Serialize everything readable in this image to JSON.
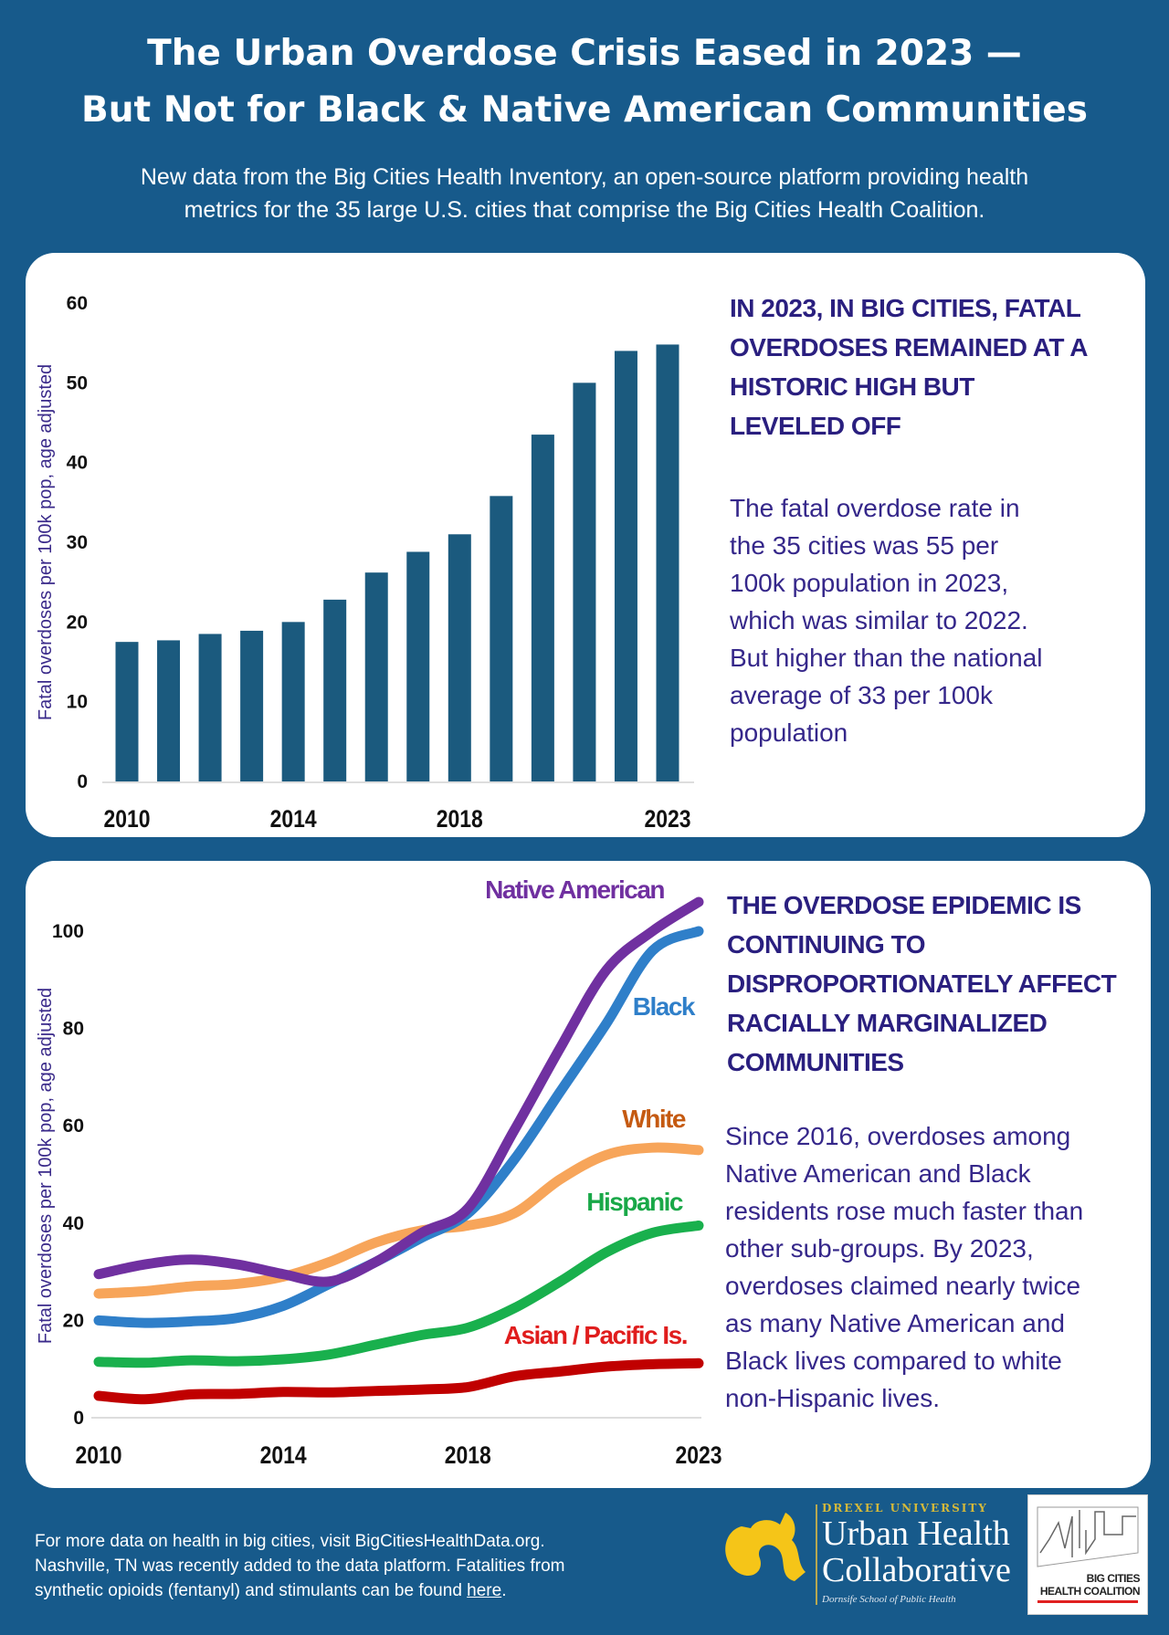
{
  "header": {
    "title_line1": "The Urban Overdose Crisis Eased in 2023 —",
    "title_line2": "But Not for Black & Native American Communities",
    "subtitle_line1": "New data from the Big Cities Health Inventory, an open-source platform providing health",
    "subtitle_line2": "metrics for the 35 large U.S. cities that comprise the Big Cities Health Coalition."
  },
  "panel1": {
    "heading_lines": [
      "IN 2023, IN BIG CITIES, FATAL",
      "OVERDOSES REMAINED AT A",
      "HISTORIC HIGH BUT",
      "LEVELED OFF"
    ],
    "body_lines": [
      "The fatal overdose rate in",
      "the 35 cities was 55 per",
      "100k population in 2023,",
      "which was similar to 2022.",
      "But higher than the national",
      "average of 33 per 100k",
      "population"
    ]
  },
  "panel2": {
    "heading_lines": [
      "THE OVERDOSE EPIDEMIC IS",
      "CONTINUING TO",
      "DISPROPORTIONATELY AFFECT",
      "RACIALLY MARGINALIZED",
      "COMMUNITIES"
    ],
    "body_lines": [
      "Since 2016, overdoses among",
      "Native American and Black",
      "residents rose much faster than",
      "other sub-groups. By 2023,",
      "overdoses claimed nearly twice",
      "as many Native American and",
      "Black lives compared to white",
      "non-Hispanic lives."
    ]
  },
  "chart_data": [
    {
      "type": "bar",
      "ylabel": "Fatal overdoses per 100k pop, age adjusted",
      "xlabel": "",
      "x": [
        2010,
        2011,
        2012,
        2013,
        2014,
        2015,
        2016,
        2017,
        2018,
        2019,
        2020,
        2021,
        2022,
        2023
      ],
      "values": [
        17.5,
        17.7,
        18.5,
        18.9,
        20.0,
        22.8,
        26.2,
        28.8,
        31.0,
        35.8,
        43.5,
        50.0,
        54.0,
        54.8
      ],
      "xticks": [
        "2010",
        "2014",
        "2018",
        "2023"
      ],
      "yticks": [
        "0",
        "10",
        "20",
        "30",
        "40",
        "50",
        "60"
      ],
      "ylim": [
        0,
        60
      ],
      "grid": false,
      "color": "#1b5a7e"
    },
    {
      "type": "line",
      "ylabel": "Fatal overdoses per 100k pop, age adjusted",
      "xlabel": "",
      "x": [
        2010,
        2011,
        2012,
        2013,
        2014,
        2015,
        2016,
        2017,
        2018,
        2019,
        2020,
        2021,
        2022,
        2023
      ],
      "xticks": [
        "2010",
        "2014",
        "2018",
        "2023"
      ],
      "yticks": [
        "0",
        "20",
        "40",
        "60",
        "80",
        "100"
      ],
      "ylim": [
        0,
        105
      ],
      "grid": false,
      "legend": "direct labels at line ends",
      "series": [
        {
          "name": "Native American",
          "color": "#7030a0",
          "label_color": "#7030a0",
          "values": [
            29.5,
            31.5,
            32.5,
            31.5,
            29.5,
            28,
            32,
            38,
            43,
            59,
            76,
            92,
            100,
            106
          ]
        },
        {
          "name": "Black",
          "color": "#2f7fc9",
          "label_color": "#2f7fc9",
          "values": [
            20,
            19.5,
            19.8,
            20.5,
            23,
            27.5,
            32,
            37,
            42,
            53,
            67,
            81,
            96,
            100
          ]
        },
        {
          "name": "White",
          "color": "#f7a55a",
          "label_color": "#c55a11",
          "values": [
            25.5,
            26,
            27,
            27.5,
            29,
            32,
            36,
            38.5,
            39.5,
            42,
            49,
            54,
            55.5,
            55
          ]
        },
        {
          "name": "Hispanic",
          "color": "#19b04d",
          "label_color": "#19a848",
          "values": [
            11.5,
            11.3,
            11.8,
            11.6,
            12,
            13,
            15,
            17,
            18.5,
            22.5,
            28,
            34,
            38,
            39.5
          ]
        },
        {
          "name": "Asian / Pacific Is.",
          "color": "#c00000",
          "label_color": "#e01d1d",
          "values": [
            4.5,
            3.8,
            4.8,
            4.9,
            5.3,
            5.2,
            5.5,
            5.8,
            6.3,
            8.5,
            9.5,
            10.5,
            11,
            11.2
          ]
        }
      ]
    }
  ],
  "footer": {
    "line1": "For more data on health in big cities, visit BigCitiesHealthData.org.",
    "line2": "Nashville, TN was recently added to the data platform. Fatalities from",
    "line3_prefix": "synthetic opioids (fentanyl) and stimulants can be found ",
    "link": "here",
    "line3_suffix": "."
  },
  "logos": {
    "drexel": {
      "top": "DREXEL UNIVERSITY",
      "line1": "Urban Health",
      "line2": "Collaborative",
      "tag": "Dornsife School of Public Health",
      "dragon_color": "#f5c518"
    },
    "bchc": {
      "line1": "BIG CITIES",
      "line2": "HEALTH COALITION",
      "accent": "#e02020"
    }
  }
}
